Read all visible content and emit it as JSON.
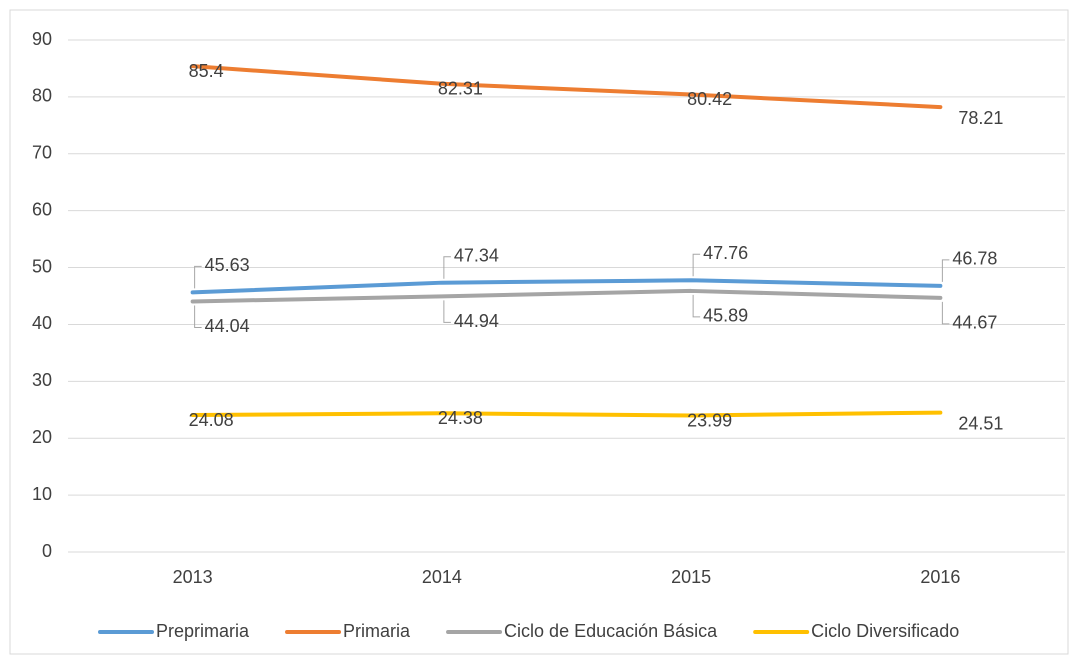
{
  "chart_data": {
    "type": "line",
    "categories": [
      "2013",
      "2014",
      "2015",
      "2016"
    ],
    "series": [
      {
        "name": "Preprimaria",
        "color": "#5b9bd5",
        "values": [
          45.63,
          47.34,
          47.76,
          46.78
        ]
      },
      {
        "name": "Primaria",
        "color": "#ed7d31",
        "values": [
          85.4,
          82.31,
          80.42,
          78.21
        ]
      },
      {
        "name": "Ciclo de Educación Básica",
        "color": "#a5a5a5",
        "values": [
          44.04,
          44.94,
          45.89,
          44.67
        ]
      },
      {
        "name": "Ciclo Diversificado",
        "color": "#ffc000",
        "values": [
          24.08,
          24.38,
          23.99,
          24.51
        ]
      }
    ],
    "ylim": [
      0,
      90
    ],
    "yticks": [
      0,
      10,
      20,
      30,
      40,
      50,
      60,
      70,
      80,
      90
    ],
    "grid": true,
    "legend": "bottom"
  }
}
